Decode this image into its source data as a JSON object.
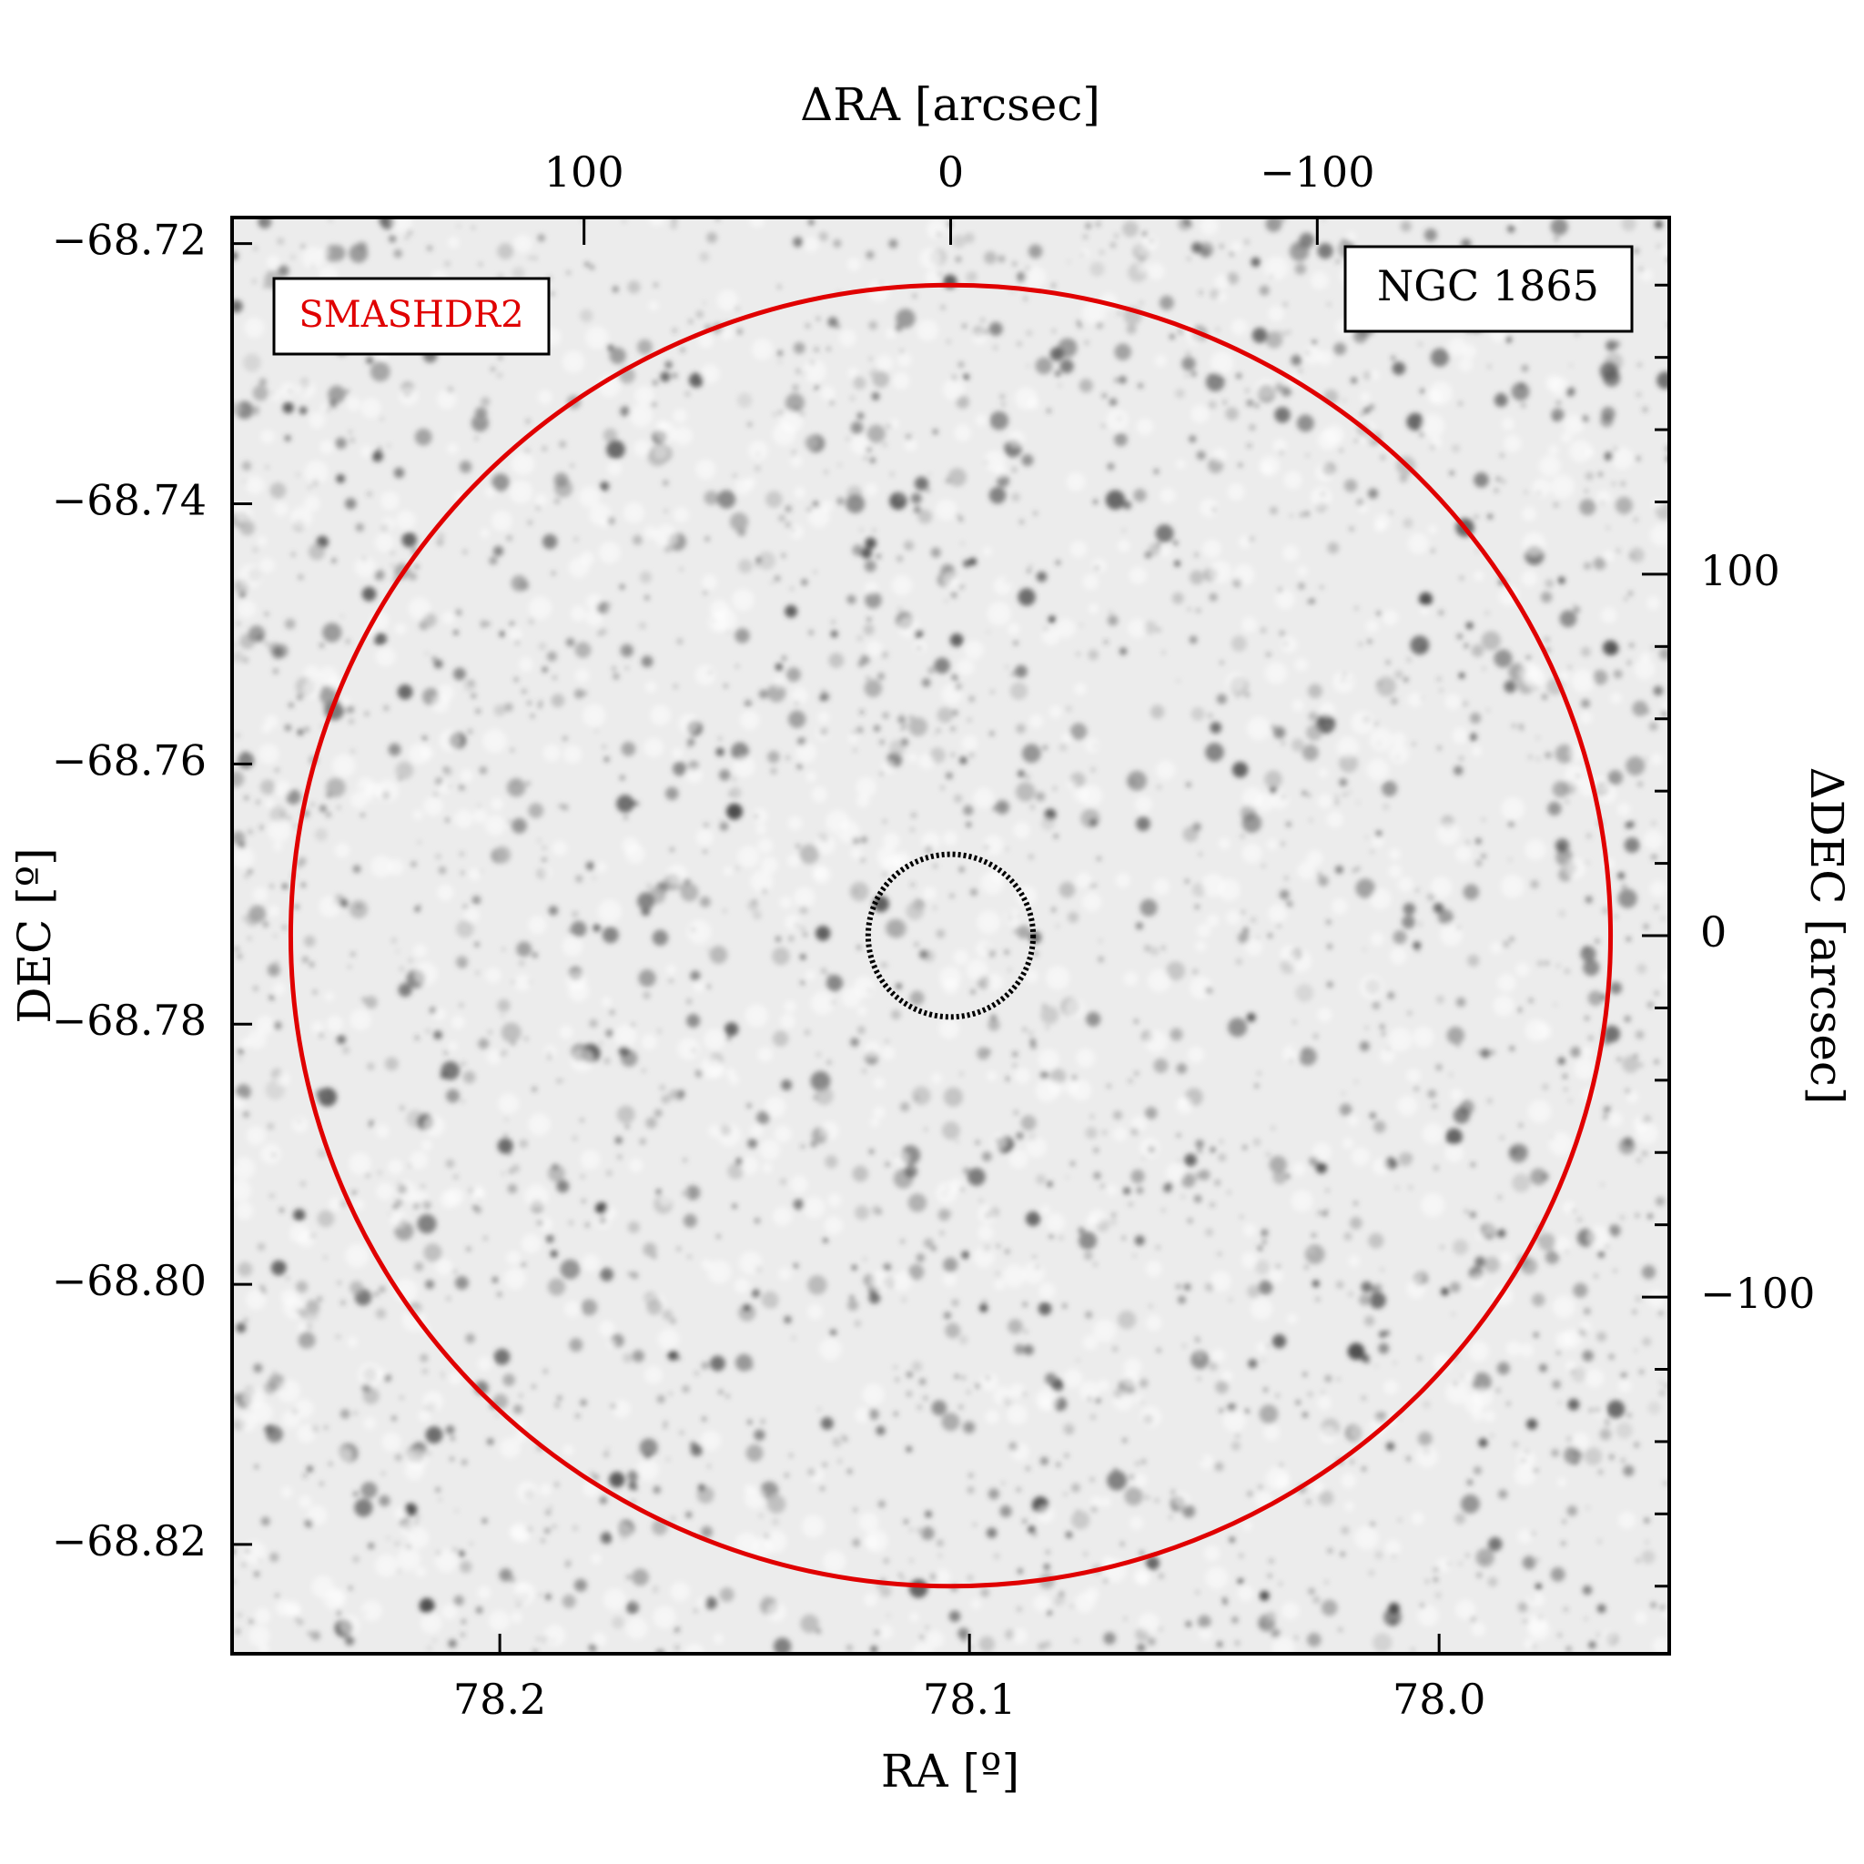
{
  "chart_data": {
    "type": "sky-image",
    "xlabel": "RA [º]",
    "ylabel": "DEC [º]",
    "x2label": "ΔRA [arcsec]",
    "y2label": "ΔDEC [arcsec]",
    "xlim": [
      78.257,
      77.951
    ],
    "xticks": [
      {
        "value": 78.2,
        "label": "78.2"
      },
      78.1,
      {
        "value": 78.0,
        "label": "78.0"
      }
    ],
    "ylim": [
      -68.8284,
      -68.718
    ],
    "yticks": [
      {
        "value": -68.72,
        "label": "−68.72"
      },
      {
        "value": -68.74,
        "label": "−68.74"
      },
      {
        "value": -68.76,
        "label": "−68.76"
      },
      {
        "value": -68.78,
        "label": "−68.78"
      },
      {
        "value": -68.8,
        "label": "−68.80"
      },
      {
        "value": -68.82,
        "label": "−68.82"
      }
    ],
    "x2lim": [
      196,
      -196
    ],
    "x2ticks": [
      100,
      0,
      {
        "value": -100,
        "label": "−100"
      }
    ],
    "y2lim": [
      -198.7,
      198.7
    ],
    "y2ticks": [
      100,
      0,
      {
        "value": -100,
        "label": "−100"
      }
    ],
    "y2minorticks": [
      -180,
      -160,
      -140,
      -120,
      -80,
      -60,
      -40,
      -20,
      20,
      40,
      60,
      80,
      120,
      140,
      160,
      180
    ],
    "circles": [
      {
        "center": [
          0,
          0
        ],
        "radius": 180,
        "color": "#e00000",
        "style": "solid"
      },
      {
        "center": [
          0,
          0
        ],
        "radius": 22.5,
        "color": "#000000",
        "style": "dotted"
      }
    ],
    "survey_label": "SMASHDR2",
    "survey_color": "#e00000",
    "object_label": "NGC 1865"
  }
}
